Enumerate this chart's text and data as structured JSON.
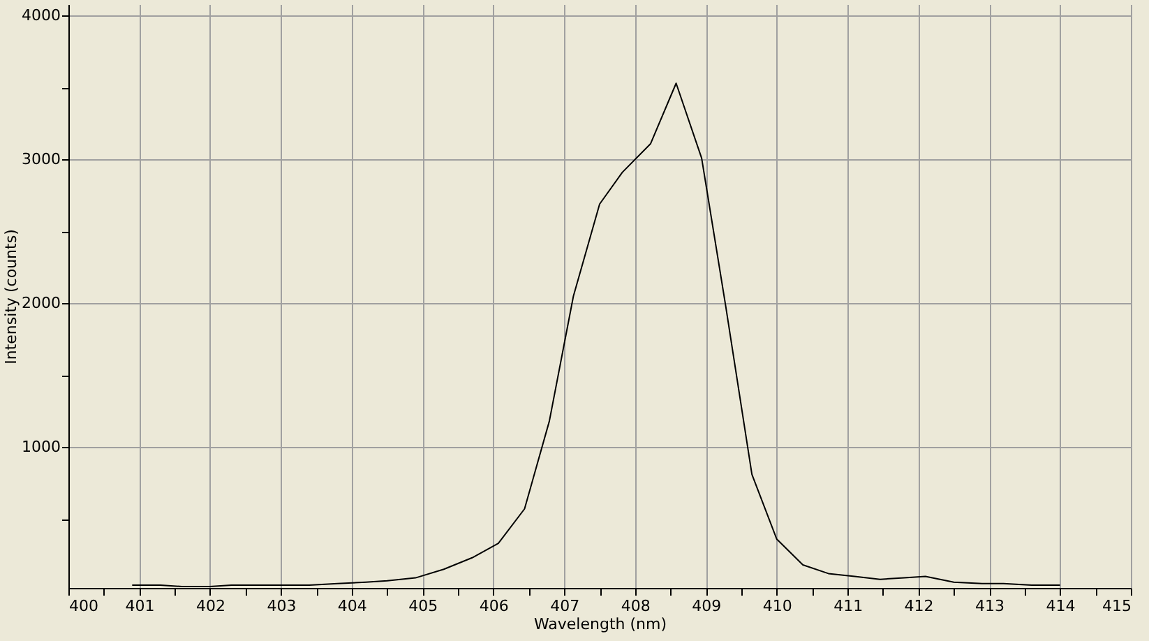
{
  "chart_data": {
    "type": "line",
    "xlabel": "Wavelength (nm)",
    "ylabel": "Intensity (counts)",
    "xlim": [
      400,
      415
    ],
    "ylim": [
      20,
      4080
    ],
    "xticks": [
      400,
      {
        "value": 400.5,
        "label": null
      },
      401,
      {
        "value": 401.5,
        "label": null
      },
      402,
      {
        "value": 402.5,
        "label": null
      },
      403,
      {
        "value": 403.5,
        "label": null
      },
      404,
      {
        "value": 404.5,
        "label": null
      },
      405,
      {
        "value": 405.5,
        "label": null
      },
      406,
      {
        "value": 406.5,
        "label": null
      },
      407,
      {
        "value": 407.5,
        "label": null
      },
      408,
      {
        "value": 408.5,
        "label": null
      },
      409,
      {
        "value": 409.5,
        "label": null
      },
      410,
      {
        "value": 410.5,
        "label": null
      },
      411,
      {
        "value": 411.5,
        "label": null
      },
      412,
      {
        "value": 412.5,
        "label": null
      },
      413,
      {
        "value": 413.5,
        "label": null
      },
      414,
      {
        "value": 414.5,
        "label": null
      },
      415
    ],
    "yticks": [
      {
        "value": 500,
        "label": null
      },
      1000,
      {
        "value": 1500,
        "label": null
      },
      2000,
      {
        "value": 2500,
        "label": null
      },
      3000,
      {
        "value": 3500,
        "label": null
      },
      4000
    ],
    "grid": true,
    "marker": "none",
    "line_style": "solid",
    "x": [
      400.9,
      401.3,
      401.6,
      402.0,
      402.3,
      402.7,
      403.1,
      403.4,
      403.8,
      404.2,
      404.5,
      404.9,
      405.3,
      405.7,
      406.07,
      406.44,
      406.79,
      407.13,
      407.5,
      407.82,
      408.22,
      408.58,
      408.94,
      409.28,
      409.65,
      410.0,
      410.37,
      410.73,
      411.1,
      411.46,
      411.8,
      412.1,
      412.5,
      412.9,
      413.2,
      413.6,
      414.0
    ],
    "series": [
      {
        "color": "#000000",
        "values": [
          40,
          40,
          30,
          30,
          40,
          40,
          40,
          40,
          50,
          60,
          70,
          90,
          150,
          230,
          330,
          570,
          1180,
          2050,
          2690,
          2910,
          3110,
          3530,
          3010,
          1980,
          810,
          360,
          180,
          120,
          100,
          80,
          90,
          100,
          60,
          50,
          50,
          40,
          40
        ]
      }
    ]
  }
}
